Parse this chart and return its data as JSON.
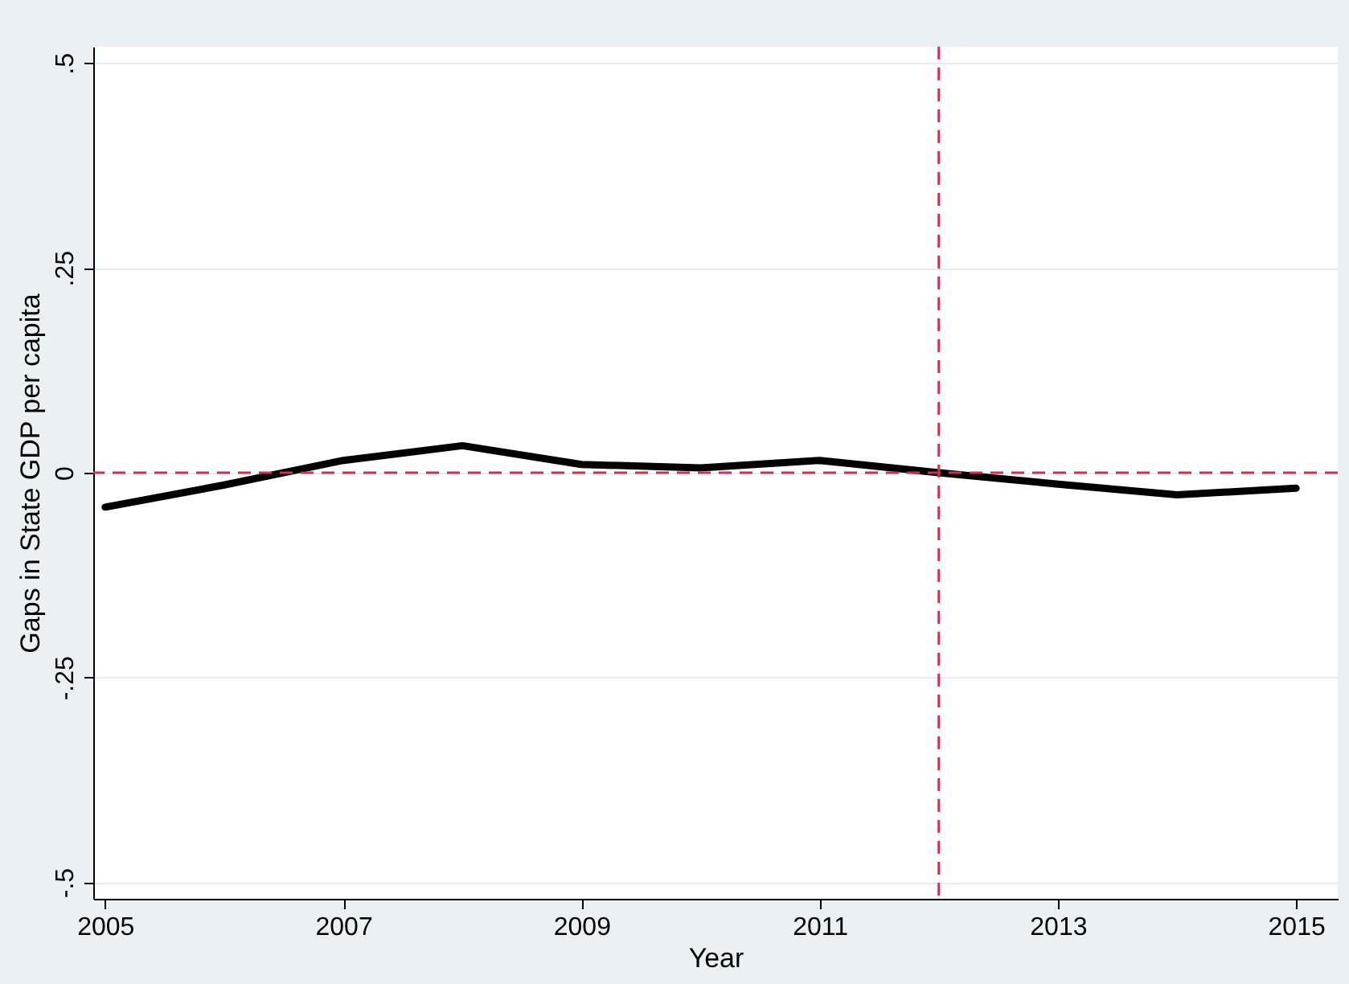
{
  "chart_data": {
    "type": "line",
    "xlabel": "Year",
    "ylabel": "Gaps in State GDP per capita",
    "x": [
      2005,
      2006,
      2007,
      2008,
      2009,
      2010,
      2011,
      2012,
      2013,
      2014,
      2015
    ],
    "series": [
      {
        "color": "#000000",
        "values": [
          -0.042,
          -0.015,
          0.015,
          0.033,
          0.01,
          0.006,
          0.015,
          0.0,
          -0.014,
          -0.027,
          -0.019
        ]
      }
    ],
    "xlim": [
      2004.9,
      2015.35
    ],
    "xticks": [
      2005,
      2007,
      2009,
      2011,
      2013,
      2015
    ],
    "ylim": [
      -0.52,
      0.52
    ],
    "yticks": [
      {
        "value": -0.5,
        "label": "-.5"
      },
      {
        "value": -0.25,
        "label": "-.25"
      },
      0,
      {
        "value": 0.25,
        "label": ".25"
      },
      {
        "value": 0.5,
        "label": ".5"
      }
    ],
    "ref_lines": [
      {
        "axis": "y",
        "value": 0,
        "color": "#d62d50",
        "line_style": "dashed"
      },
      {
        "axis": "x",
        "value": 2012,
        "color": "#d62d50",
        "line_style": "dashed"
      }
    ],
    "grid": "y",
    "marker": "none",
    "line_style": "solid"
  }
}
